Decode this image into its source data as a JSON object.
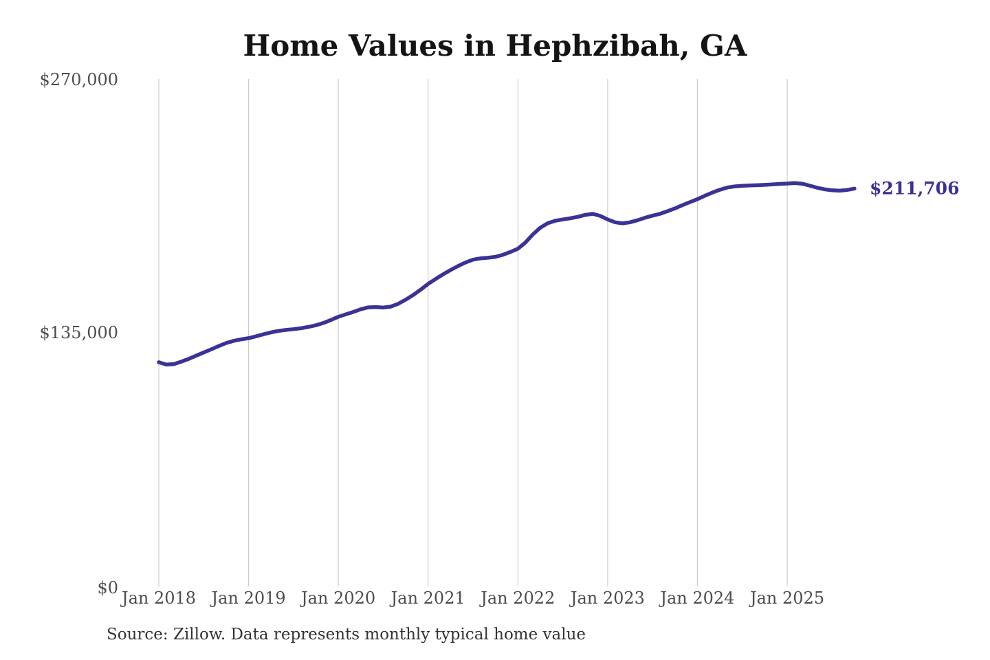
{
  "source_note": "Source: Zillow. Data represents monthly typical home value",
  "colors": {
    "line": "#3b3295",
    "grid": "#cccccc",
    "title": "#141414",
    "axis_text": "#4d4d4d",
    "annotation": "#3b3295",
    "background": "#ffffff"
  },
  "chart_data": {
    "type": "line",
    "title": "Home Values in Hephzibah, GA",
    "series_name": "Monthly typical home value",
    "annotation_label": "$211,706",
    "final_value": 211706,
    "xlabel": "",
    "ylabel": "",
    "ylim": [
      0,
      270000
    ],
    "y_ticks": [
      0,
      135000,
      270000
    ],
    "y_tick_labels": [
      "$0",
      "$135,000",
      "$270,000"
    ],
    "x_tick_labels": [
      "Jan 2018",
      "Jan 2019",
      "Jan 2020",
      "Jan 2021",
      "Jan 2022",
      "Jan 2023",
      "Jan 2024",
      "Jan 2025"
    ],
    "grid": "vertical-only",
    "legend": "none",
    "months": [
      "2018-01",
      "2018-02",
      "2018-03",
      "2018-04",
      "2018-05",
      "2018-06",
      "2018-07",
      "2018-08",
      "2018-09",
      "2018-10",
      "2018-11",
      "2018-12",
      "2019-01",
      "2019-02",
      "2019-03",
      "2019-04",
      "2019-05",
      "2019-06",
      "2019-07",
      "2019-08",
      "2019-09",
      "2019-10",
      "2019-11",
      "2019-12",
      "2020-01",
      "2020-02",
      "2020-03",
      "2020-04",
      "2020-05",
      "2020-06",
      "2020-07",
      "2020-08",
      "2020-09",
      "2020-10",
      "2020-11",
      "2020-12",
      "2021-01",
      "2021-02",
      "2021-03",
      "2021-04",
      "2021-05",
      "2021-06",
      "2021-07",
      "2021-08",
      "2021-09",
      "2021-10",
      "2021-11",
      "2021-12",
      "2022-01",
      "2022-02",
      "2022-03",
      "2022-04",
      "2022-05",
      "2022-06",
      "2022-07",
      "2022-08",
      "2022-09",
      "2022-10",
      "2022-11",
      "2022-12",
      "2023-01",
      "2023-02",
      "2023-03",
      "2023-04",
      "2023-05",
      "2023-06",
      "2023-07",
      "2023-08",
      "2023-09",
      "2023-10",
      "2023-11",
      "2023-12",
      "2024-01",
      "2024-02",
      "2024-03",
      "2024-04",
      "2024-05",
      "2024-06",
      "2024-07",
      "2024-08",
      "2024-09",
      "2024-10",
      "2024-11",
      "2024-12",
      "2025-01",
      "2025-02",
      "2025-03",
      "2025-04",
      "2025-05",
      "2025-06",
      "2025-07",
      "2025-08",
      "2025-09",
      "2025-10"
    ],
    "values": [
      119300,
      118100,
      118300,
      119600,
      121100,
      122800,
      124500,
      126200,
      127900,
      129500,
      130700,
      131500,
      132100,
      133100,
      134200,
      135200,
      136000,
      136500,
      136900,
      137400,
      138100,
      139000,
      140200,
      141800,
      143500,
      144800,
      146100,
      147500,
      148500,
      148700,
      148400,
      148900,
      150400,
      152600,
      155100,
      157900,
      161000,
      163600,
      166100,
      168400,
      170500,
      172400,
      173900,
      174600,
      174900,
      175400,
      176500,
      178000,
      179700,
      183000,
      187300,
      190900,
      193300,
      194600,
      195300,
      195900,
      196700,
      197700,
      198300,
      197200,
      195300,
      193800,
      193200,
      193800,
      194900,
      196200,
      197300,
      198300,
      199700,
      201200,
      202900,
      204500,
      206100,
      207900,
      209600,
      211100,
      212300,
      212900,
      213200,
      213400,
      213500,
      213700,
      213900,
      214200,
      214400,
      214700,
      214300,
      213300,
      212200,
      211300,
      210800,
      210600,
      211000,
      211706
    ]
  }
}
